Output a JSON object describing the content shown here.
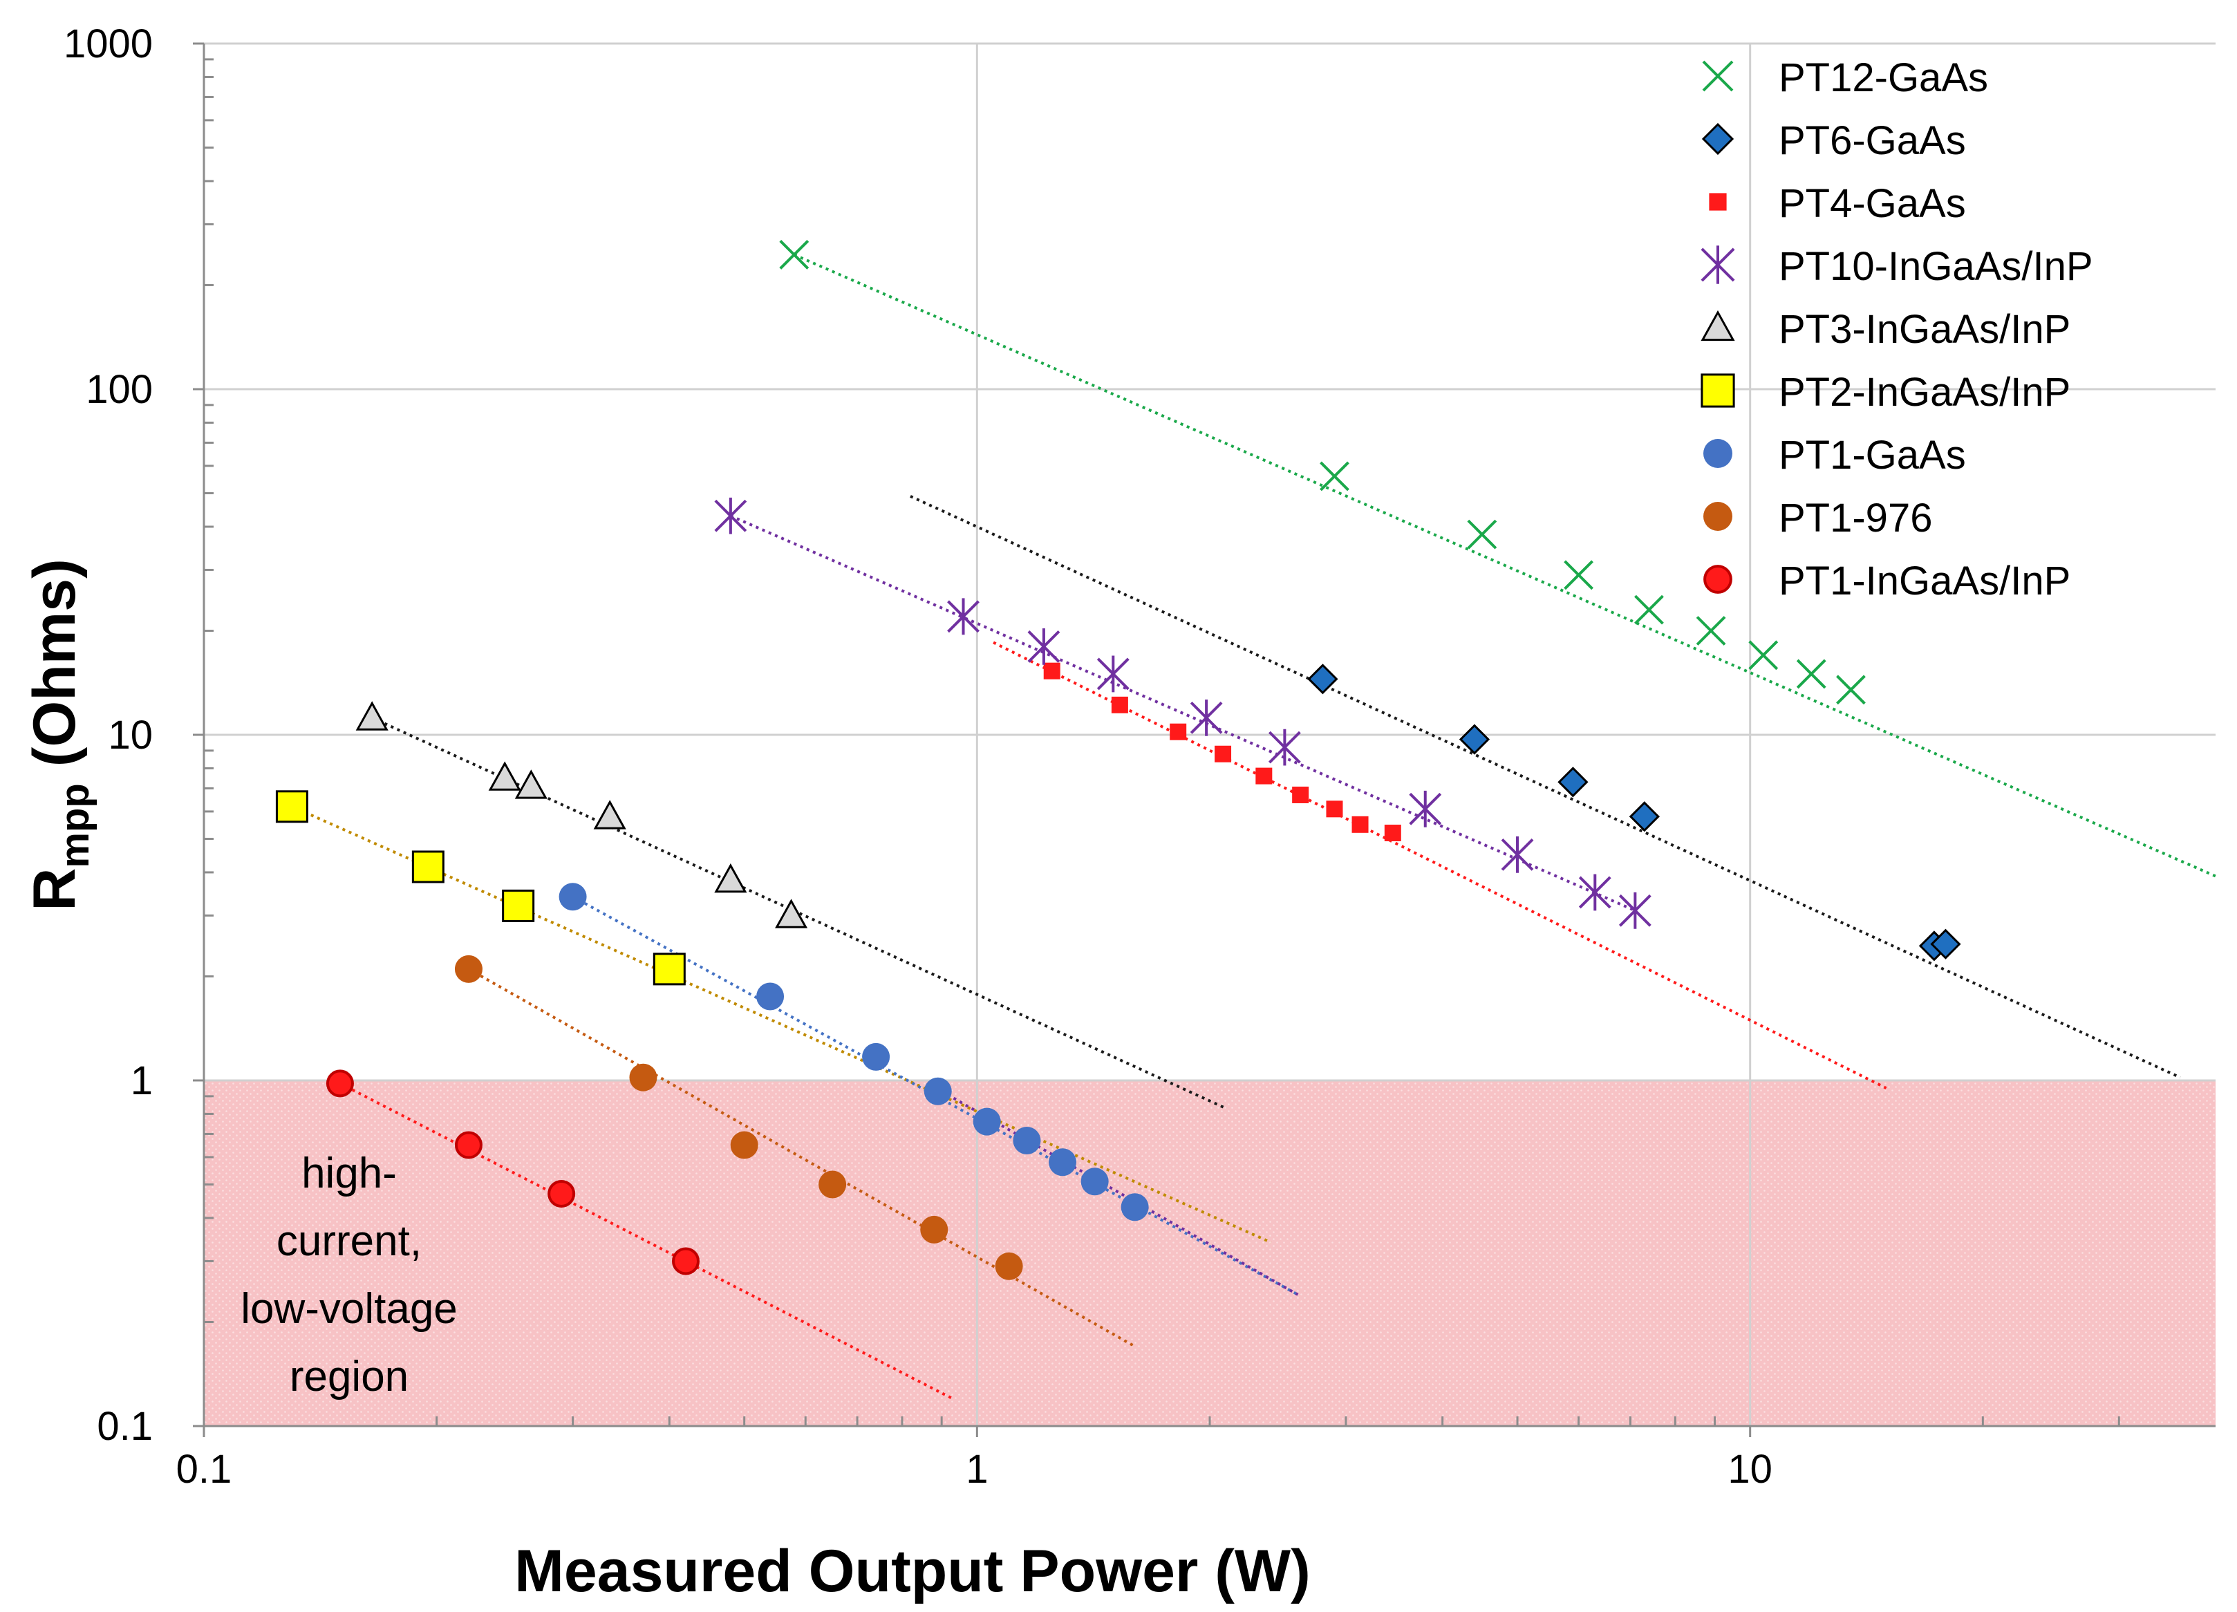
{
  "chart_data": {
    "type": "scatter",
    "title": "",
    "xlabel": "Measured Output Power (W)",
    "ylabel_main": "R",
    "ylabel_sub": "mpp",
    "ylabel_rest": " (Ohms)",
    "xscale": "log",
    "yscale": "log",
    "xlim": [
      0.1,
      40
    ],
    "ylim": [
      0.1,
      1000
    ],
    "x_ticks": [
      0.1,
      1,
      10
    ],
    "x_tick_labels": [
      "0.1",
      "1",
      "10"
    ],
    "y_ticks": [
      0.1,
      1,
      10,
      100,
      1000
    ],
    "y_tick_labels": [
      "0.1",
      "1",
      "10",
      "100",
      "1000"
    ],
    "grid": true,
    "legend_position": "top-right",
    "shaded_region": {
      "label_lines": [
        "high-",
        "current,",
        "low-voltage",
        "region"
      ],
      "y_range": [
        0.1,
        1
      ],
      "color": "#f4b8bc"
    },
    "series": [
      {
        "name": "PT12-GaAs",
        "marker": "x",
        "color": "#1aa84a",
        "x": [
          0.58,
          2.9,
          4.5,
          6.0,
          7.4,
          8.9,
          10.4,
          12.0,
          13.5
        ],
        "y": [
          245,
          56,
          38,
          29,
          23,
          20,
          17,
          15,
          13.5
        ],
        "trend": {
          "x": [
            0.58,
            40
          ],
          "y": [
            245,
            3.9
          ]
        }
      },
      {
        "name": "PT6-GaAs",
        "marker": "diamond",
        "color": "#1f6fc0",
        "x": [
          2.8,
          4.4,
          5.9,
          7.3,
          17.3,
          17.9
        ],
        "y": [
          14.5,
          9.7,
          7.3,
          5.8,
          2.45,
          2.48
        ],
        "trend": {
          "x": [
            0.82,
            36
          ],
          "y": [
            49,
            1.02
          ]
        }
      },
      {
        "name": "PT4-GaAs",
        "marker": "square-small",
        "color": "#ff1a1a",
        "x": [
          1.25,
          1.53,
          1.82,
          2.08,
          2.35,
          2.62,
          2.9,
          3.13,
          3.45
        ],
        "y": [
          15.3,
          12.2,
          10.2,
          8.8,
          7.6,
          6.7,
          6.1,
          5.5,
          5.2
        ],
        "trend": {
          "x": [
            1.05,
            15
          ],
          "y": [
            18.5,
            0.95
          ]
        }
      },
      {
        "name": "PT10-InGaAs/InP",
        "marker": "star",
        "color": "#7030a0",
        "x": [
          0.48,
          0.96,
          1.22,
          1.5,
          1.98,
          2.5,
          3.8,
          5.0,
          6.3,
          7.1
        ],
        "y": [
          43,
          22,
          18,
          15,
          11.2,
          9.2,
          6.1,
          4.5,
          3.5,
          3.1
        ],
        "trend": {
          "x": [
            0.48,
            7.1
          ],
          "y": [
            43,
            3.1
          ]
        }
      },
      {
        "name": "PT3-InGaAs/InP",
        "marker": "triangle",
        "color": "#d9d9d9",
        "x": [
          0.165,
          0.245,
          0.265,
          0.335,
          0.48,
          0.575
        ],
        "y": [
          11.2,
          7.5,
          7.1,
          5.8,
          3.8,
          3.0
        ],
        "trend": {
          "x": [
            0.165,
            2.1
          ],
          "y": [
            11.2,
            0.83
          ]
        }
      },
      {
        "name": "PT2-InGaAs/InP",
        "marker": "square",
        "color": "#ffff00",
        "x": [
          0.13,
          0.195,
          0.255,
          0.4
        ],
        "y": [
          6.2,
          4.15,
          3.2,
          2.1
        ],
        "trend": {
          "x": [
            0.13,
            2.4
          ],
          "y": [
            6.2,
            0.34
          ]
        }
      },
      {
        "name": "PT1-GaAs",
        "marker": "circle",
        "color": "#4472c4",
        "x": [
          0.3,
          0.54,
          0.74,
          0.89,
          1.03,
          1.16,
          1.29,
          1.42,
          1.6
        ],
        "y": [
          3.4,
          1.75,
          1.17,
          0.93,
          0.76,
          0.67,
          0.58,
          0.51,
          0.43
        ],
        "trend": {
          "x": [
            0.3,
            2.6
          ],
          "y": [
            3.4,
            0.24
          ]
        }
      },
      {
        "name": "PT1-976",
        "marker": "circle",
        "color": "#c55a11",
        "x": [
          0.22,
          0.37,
          0.5,
          0.65,
          0.88,
          1.1
        ],
        "y": [
          2.1,
          1.02,
          0.65,
          0.5,
          0.37,
          0.29
        ],
        "trend": {
          "x": [
            0.22,
            1.6
          ],
          "y": [
            2.1,
            0.17
          ]
        }
      },
      {
        "name": "PT1-InGaAs/InP",
        "marker": "circle-ring",
        "color": "#ff1a1a",
        "x": [
          0.15,
          0.22,
          0.29,
          0.42
        ],
        "y": [
          0.98,
          0.65,
          0.47,
          0.3
        ],
        "trend": {
          "x": [
            0.15,
            0.93
          ],
          "y": [
            0.98,
            0.12
          ]
        }
      }
    ]
  }
}
